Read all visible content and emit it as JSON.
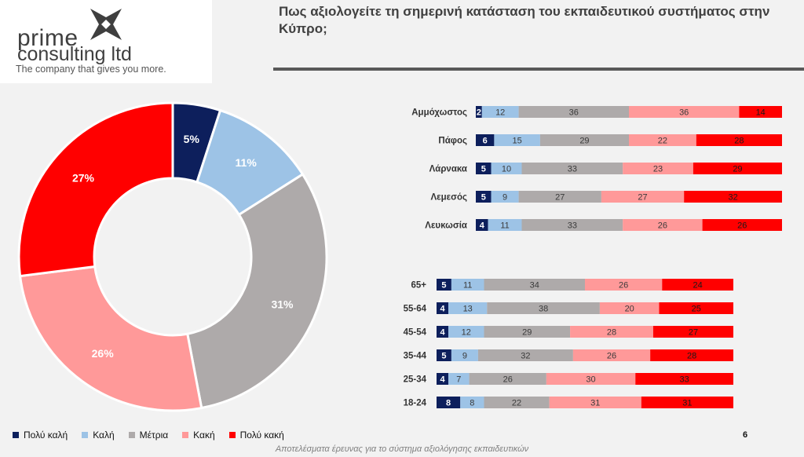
{
  "header": {
    "logo_line1": "prime",
    "logo_line2": "consulting ltd",
    "logo_tagline": "The company that gives you more.",
    "title": "Πως αξιολογείτε τη σημερινή κατάσταση του εκπαιδευτικού συστήματος στην Κύπρο;"
  },
  "legend": [
    {
      "label": "Πολύ καλή",
      "color": "#0d1f5c"
    },
    {
      "label": "Καλή",
      "color": "#9dc3e6"
    },
    {
      "label": "Μέτρια",
      "color": "#aeaaaa"
    },
    {
      "label": "Κακή",
      "color": "#ff9999"
    },
    {
      "label": "Πολύ κακή",
      "color": "#ff0000"
    }
  ],
  "footer": {
    "page_number": "6",
    "caption": "Αποτελέσματα έρευνας για το σύστημα αξιολόγησης εκπαιδευτικών"
  },
  "chart_data": [
    {
      "type": "pie",
      "donut": true,
      "categories": [
        "Πολύ καλή",
        "Καλή",
        "Μέτρια",
        "Κακή",
        "Πολύ κακή"
      ],
      "values": [
        5,
        11,
        31,
        26,
        27
      ],
      "labels": [
        "5%",
        "11%",
        "31%",
        "26%",
        "27%"
      ],
      "colors": [
        "#0d1f5c",
        "#9dc3e6",
        "#aeaaaa",
        "#ff9999",
        "#ff0000"
      ]
    },
    {
      "type": "bar",
      "orientation": "horizontal",
      "stacked": true,
      "categories": [
        "Αμμόχωστος",
        "Πάφος",
        "Λάρνακα",
        "Λεμεσός",
        "Λευκωσία"
      ],
      "series": [
        {
          "name": "Πολύ καλή",
          "values": [
            2,
            6,
            5,
            5,
            4
          ]
        },
        {
          "name": "Καλή",
          "values": [
            12,
            15,
            10,
            9,
            11
          ]
        },
        {
          "name": "Μέτρια",
          "values": [
            36,
            29,
            33,
            27,
            33
          ]
        },
        {
          "name": "Κακή",
          "values": [
            36,
            22,
            23,
            27,
            26
          ]
        },
        {
          "name": "Πολύ κακή",
          "values": [
            14,
            28,
            29,
            32,
            26
          ]
        }
      ]
    },
    {
      "type": "bar",
      "orientation": "horizontal",
      "stacked": true,
      "categories": [
        "65+",
        "55-64",
        "45-54",
        "35-44",
        "25-34",
        "18-24"
      ],
      "series": [
        {
          "name": "Πολύ καλή",
          "values": [
            5,
            4,
            4,
            5,
            4,
            8
          ]
        },
        {
          "name": "Καλή",
          "values": [
            11,
            13,
            12,
            9,
            7,
            8
          ]
        },
        {
          "name": "Μέτρια",
          "values": [
            34,
            38,
            29,
            32,
            26,
            22
          ]
        },
        {
          "name": "Κακή",
          "values": [
            26,
            20,
            28,
            26,
            30,
            31
          ]
        },
        {
          "name": "Πολύ κακή",
          "values": [
            24,
            25,
            27,
            28,
            33,
            31
          ]
        }
      ]
    }
  ]
}
